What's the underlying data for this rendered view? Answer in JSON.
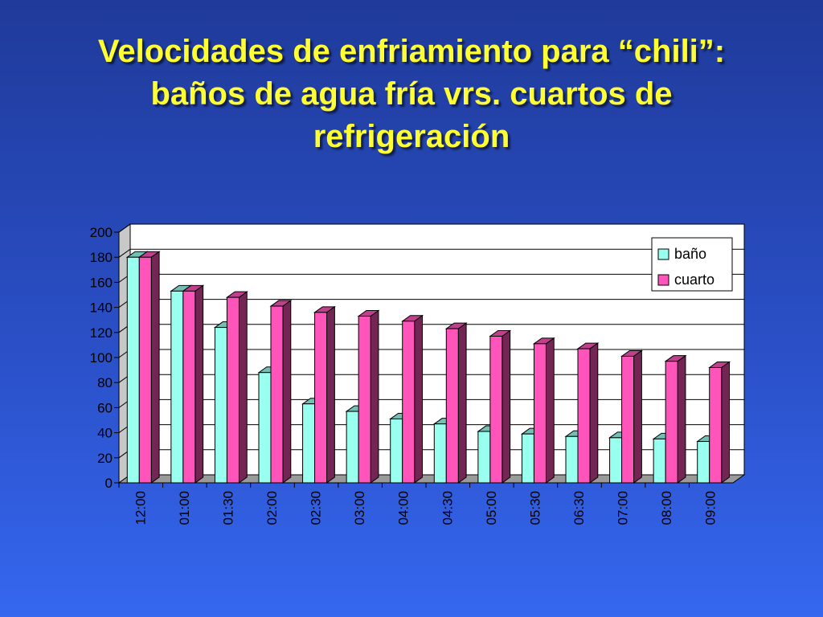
{
  "slide": {
    "title_lines": [
      "Velocidades de enfriamiento para “chili”:",
      "baños de agua fría  vrs.  cuartos de",
      "refrigeración"
    ]
  },
  "colors": {
    "background": "#2a4fc6",
    "title": "#ffff33",
    "plot_area": "#ffffff",
    "bano": "#99ffee",
    "cuarto": "#ff55bb"
  },
  "chart_data": {
    "type": "bar",
    "categories": [
      "12:00",
      "01:00",
      "01:30",
      "02:00",
      "02:30",
      "03:00",
      "04:00",
      "04:30",
      "05:00",
      "05:30",
      "06:30",
      "07:00",
      "08:00",
      "09:00"
    ],
    "series": [
      {
        "name": "baño",
        "values": [
          180,
          153,
          124,
          88,
          63,
          57,
          51,
          47,
          41,
          39,
          37,
          36,
          35,
          33
        ]
      },
      {
        "name": "cuarto",
        "values": [
          180,
          153,
          148,
          141,
          136,
          133,
          129,
          123,
          117,
          111,
          107,
          101,
          97,
          92
        ]
      }
    ],
    "yticks": [
      "0",
      "20",
      "40",
      "60",
      "80",
      "100",
      "120",
      "140",
      "160",
      "180",
      "200"
    ],
    "ylim": [
      0,
      200
    ],
    "title": "",
    "xlabel": "",
    "ylabel": "",
    "grid": true,
    "legend_position": "top-right",
    "style": "3d-clustered-column"
  }
}
